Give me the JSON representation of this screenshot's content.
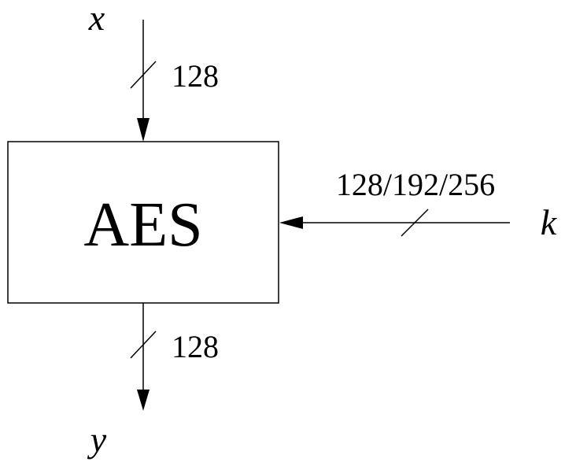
{
  "block": {
    "label": "AES"
  },
  "input": {
    "name": "x",
    "width": "128"
  },
  "output": {
    "name": "y",
    "width": "128"
  },
  "key": {
    "name": "k",
    "width": "128/192/256"
  }
}
